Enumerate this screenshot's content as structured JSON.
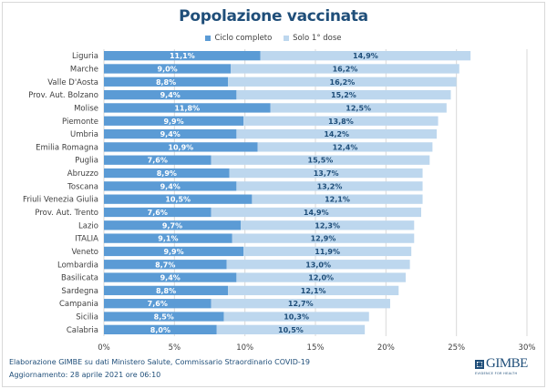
{
  "chart_data": {
    "type": "bar",
    "orientation": "horizontal",
    "stacked": true,
    "title": "Popolazione vaccinata",
    "xlabel": "",
    "ylabel": "",
    "xlim": [
      0,
      30
    ],
    "x_ticks": [
      "0%",
      "5%",
      "10%",
      "15%",
      "20%",
      "25%",
      "30%"
    ],
    "x_tick_values": [
      0,
      5,
      10,
      15,
      20,
      25,
      30
    ],
    "grid": true,
    "legend_position": "top",
    "categories": [
      "Liguria",
      "Marche",
      "Valle D'Aosta",
      "Prov. Aut. Bolzano",
      "Molise",
      "Piemonte",
      "Umbria",
      "Emilia Romagna",
      "Puglia",
      "Abruzzo",
      "Toscana",
      "Friuli Venezia Giulia",
      "Prov. Aut. Trento",
      "Lazio",
      "ITALIA",
      "Veneto",
      "Lombardia",
      "Basilicata",
      "Sardegna",
      "Campania",
      "Sicilia",
      "Calabria"
    ],
    "series": [
      {
        "name": "Ciclo completo",
        "color": "#5b9bd5",
        "label_color": "#ffffff",
        "values": [
          11.1,
          9.0,
          8.8,
          9.4,
          11.8,
          9.9,
          9.4,
          10.9,
          7.6,
          8.9,
          9.4,
          10.5,
          7.6,
          9.7,
          9.1,
          9.9,
          8.7,
          9.4,
          8.8,
          7.6,
          8.5,
          8.0
        ],
        "labels": [
          "11,1%",
          "9,0%",
          "8,8%",
          "9,4%",
          "11,8%",
          "9,9%",
          "9,4%",
          "10,9%",
          "7,6%",
          "8,9%",
          "9,4%",
          "10,5%",
          "7,6%",
          "9,7%",
          "9,1%",
          "9,9%",
          "8,7%",
          "9,4%",
          "8,8%",
          "7,6%",
          "8,5%",
          "8,0%"
        ]
      },
      {
        "name": "Solo 1° dose",
        "color": "#bdd7ee",
        "label_color": "#1f4e79",
        "values": [
          14.9,
          16.2,
          16.2,
          15.2,
          12.5,
          13.8,
          14.2,
          12.4,
          15.5,
          13.7,
          13.2,
          12.1,
          14.9,
          12.3,
          12.9,
          11.9,
          13.0,
          12.0,
          12.1,
          12.7,
          10.3,
          10.5
        ],
        "labels": [
          "14,9%",
          "16,2%",
          "16,2%",
          "15,2%",
          "12,5%",
          "13,8%",
          "14,2%",
          "12,4%",
          "15,5%",
          "13,7%",
          "13,2%",
          "12,1%",
          "14,9%",
          "12,3%",
          "12,9%",
          "11,9%",
          "13,0%",
          "12,0%",
          "12,1%",
          "12,7%",
          "10,3%",
          "10,5%"
        ]
      }
    ]
  },
  "footer": {
    "source": "Elaborazione GIMBE su dati Ministero Salute, Commissario Straordinario COVID-19",
    "updated": "Aggiornamento:  28 aprile 2021 ore 06:10"
  },
  "logo": {
    "name": "GIMBE",
    "tagline": "EVIDENCE FOR HEALTH"
  }
}
